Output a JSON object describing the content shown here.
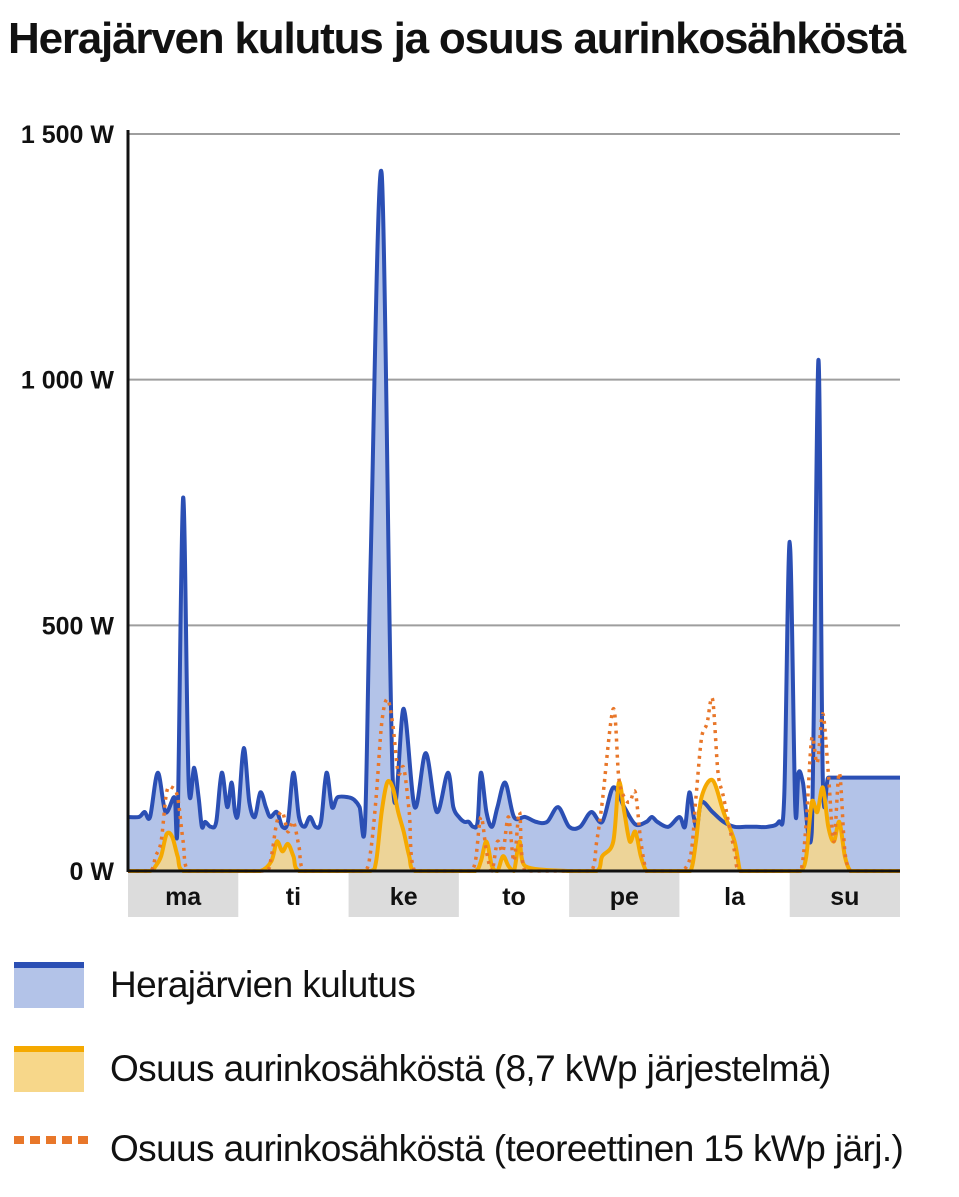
{
  "chart_data": {
    "type": "area",
    "title": "Herajärven kulutus ja osuus aurinkosähköstä",
    "y_ticks": [
      "1 500 W",
      "1 000 W",
      "500 W",
      "0 W"
    ],
    "y_tick_values": [
      1500,
      1000,
      500,
      0
    ],
    "ylim": [
      0,
      1500
    ],
    "unit": "W",
    "categories": [
      "ma",
      "ti",
      "ke",
      "to",
      "pe",
      "la",
      "su"
    ],
    "x_range_days": [
      0,
      7
    ],
    "grid": true,
    "legend_position": "bottom",
    "colors": {
      "consumption_line": "#2b4fb4",
      "consumption_fill": "#b3c3e8",
      "solar_line": "#f5a900",
      "solar_fill": "#f7d78a",
      "theoretical": "#e8772a",
      "day_band": "#dcdcdc",
      "grid": "#9e9e9e"
    },
    "series": [
      {
        "name": "Herajärvien kulutus",
        "style": "area-line",
        "x": [
          0.0,
          0.1,
          0.15,
          0.2,
          0.27,
          0.34,
          0.42,
          0.45,
          0.5,
          0.55,
          0.6,
          0.64,
          0.67,
          0.7,
          0.75,
          0.8,
          0.85,
          0.9,
          0.94,
          0.97,
          1.0,
          1.05,
          1.1,
          1.15,
          1.2,
          1.25,
          1.29,
          1.35,
          1.4,
          1.45,
          1.5,
          1.55,
          1.6,
          1.65,
          1.7,
          1.75,
          1.8,
          1.85,
          1.9,
          2.0,
          2.05,
          2.1,
          2.15,
          2.2,
          2.3,
          2.4,
          2.5,
          2.6,
          2.7,
          2.8,
          2.9,
          2.95,
          3.0,
          3.05,
          3.09,
          3.13,
          3.17,
          3.2,
          3.25,
          3.3,
          3.35,
          3.42,
          3.5,
          3.6,
          3.7,
          3.8,
          3.9,
          4.0,
          4.1,
          4.2,
          4.3,
          4.4,
          4.5,
          4.6,
          4.7,
          4.75,
          4.8,
          4.9,
          5.0,
          5.05,
          5.09,
          5.13,
          5.16,
          5.2,
          5.3,
          5.4,
          5.5,
          5.6,
          5.7,
          5.8,
          5.9,
          5.95,
          6.0,
          6.05,
          6.08,
          6.12,
          6.2,
          6.26,
          6.3,
          6.35,
          6.45,
          6.5,
          7.0
        ],
        "values": [
          110,
          110,
          120,
          110,
          200,
          120,
          150,
          100,
          760,
          180,
          210,
          150,
          90,
          100,
          90,
          100,
          200,
          130,
          180,
          120,
          120,
          250,
          140,
          110,
          160,
          130,
          110,
          120,
          90,
          100,
          200,
          110,
          90,
          110,
          90,
          100,
          200,
          130,
          150,
          150,
          145,
          130,
          100,
          630,
          1420,
          190,
          330,
          130,
          240,
          120,
          200,
          130,
          110,
          100,
          100,
          90,
          100,
          200,
          120,
          90,
          130,
          180,
          110,
          110,
          100,
          100,
          130,
          90,
          90,
          120,
          100,
          170,
          130,
          95,
          100,
          110,
          100,
          90,
          110,
          90,
          160,
          110,
          90,
          140,
          120,
          100,
          90,
          90,
          90,
          90,
          100,
          150,
          670,
          130,
          200,
          180,
          80,
          1040,
          190,
          190,
          190,
          190,
          190
        ]
      },
      {
        "name": "Osuus aurinkosähköstä (8,7 kWp  järjestelmä)",
        "style": "area-line",
        "x": [
          0.0,
          0.2,
          0.25,
          0.3,
          0.35,
          0.4,
          0.45,
          0.5,
          1.0,
          1.2,
          1.3,
          1.35,
          1.4,
          1.45,
          1.5,
          1.55,
          2.0,
          2.2,
          2.25,
          2.3,
          2.35,
          2.4,
          2.45,
          2.5,
          2.55,
          2.6,
          3.0,
          3.15,
          3.2,
          3.25,
          3.3,
          3.35,
          3.4,
          3.45,
          3.5,
          3.55,
          3.6,
          4.0,
          4.25,
          4.3,
          4.4,
          4.45,
          4.5,
          4.55,
          4.6,
          4.65,
          4.7,
          4.75,
          5.0,
          5.1,
          5.15,
          5.2,
          5.3,
          5.4,
          5.5,
          5.55,
          5.6,
          6.0,
          6.1,
          6.15,
          6.2,
          6.25,
          6.3,
          6.35,
          6.4,
          6.45,
          6.5,
          6.55,
          6.6,
          7.0
        ],
        "values": [
          0,
          0,
          10,
          30,
          75,
          70,
          30,
          0,
          0,
          0,
          20,
          60,
          40,
          55,
          30,
          0,
          0,
          0,
          20,
          120,
          180,
          170,
          120,
          80,
          30,
          0,
          0,
          0,
          20,
          60,
          10,
          0,
          30,
          10,
          0,
          60,
          10,
          0,
          0,
          30,
          60,
          180,
          120,
          60,
          80,
          30,
          0,
          0,
          0,
          0,
          60,
          150,
          185,
          120,
          60,
          0,
          0,
          0,
          0,
          30,
          140,
          120,
          170,
          90,
          60,
          100,
          30,
          0,
          0,
          0
        ]
      },
      {
        "name": "Osuus aurinkosähköstä (teoreettinen 15 kWp  järj.)",
        "style": "dotted-line",
        "x": [
          0.0,
          0.2,
          0.25,
          0.3,
          0.35,
          0.4,
          0.45,
          0.5,
          0.55,
          1.0,
          1.25,
          1.3,
          1.35,
          1.4,
          1.45,
          1.5,
          1.55,
          1.6,
          2.0,
          2.15,
          2.2,
          2.25,
          2.3,
          2.35,
          2.4,
          2.45,
          2.5,
          2.55,
          2.6,
          3.0,
          3.1,
          3.15,
          3.2,
          3.25,
          3.3,
          3.35,
          3.4,
          3.45,
          3.5,
          3.55,
          3.6,
          4.0,
          4.2,
          4.25,
          4.3,
          4.4,
          4.45,
          4.5,
          4.55,
          4.6,
          4.65,
          4.7,
          4.75,
          5.0,
          5.1,
          5.15,
          5.2,
          5.25,
          5.3,
          5.35,
          5.4,
          5.5,
          5.55,
          6.0,
          6.1,
          6.15,
          6.2,
          6.25,
          6.3,
          6.35,
          6.4,
          6.45,
          6.5,
          6.55,
          6.6,
          7.0
        ],
        "values": [
          0,
          0,
          30,
          60,
          160,
          170,
          150,
          60,
          0,
          0,
          0,
          30,
          100,
          120,
          80,
          100,
          50,
          0,
          0,
          0,
          40,
          150,
          300,
          350,
          300,
          200,
          210,
          120,
          0,
          0,
          0,
          20,
          110,
          40,
          0,
          60,
          40,
          110,
          20,
          120,
          0,
          0,
          0,
          60,
          140,
          330,
          190,
          150,
          140,
          160,
          60,
          0,
          0,
          0,
          30,
          150,
          270,
          300,
          350,
          200,
          150,
          40,
          0,
          0,
          0,
          100,
          270,
          220,
          320,
          200,
          60,
          200,
          40,
          0,
          0,
          0
        ]
      }
    ]
  },
  "legend": {
    "consumption": "Herajärvien kulutus",
    "solar": "Osuus aurinkosähköstä (8,7 kWp  järjestelmä)",
    "theoretical": "Osuus aurinkosähköstä (teoreettinen 15 kWp  järj.)"
  }
}
